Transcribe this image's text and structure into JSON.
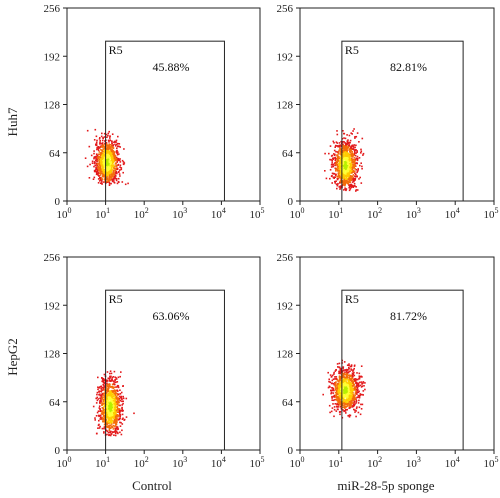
{
  "chart_data": {
    "type": "scatter",
    "row_labels": [
      "Huh7",
      "HepG2"
    ],
    "column_labels": [
      "Control",
      "miR-28-5p sponge"
    ],
    "x_axis": {
      "scale": "log",
      "range": [
        1,
        100000
      ],
      "tick_bases": [
        "10",
        "10",
        "10",
        "10",
        "10",
        "10"
      ],
      "tick_exponents": [
        "0",
        "1",
        "2",
        "3",
        "4",
        "5"
      ]
    },
    "y_axis": {
      "scale": "linear",
      "range": [
        0,
        256
      ],
      "ticks": [
        "0",
        "64",
        "128",
        "192",
        "256"
      ]
    },
    "gate_name": "R5",
    "gate_x_range": [
      10,
      12000
    ],
    "gate_y_range": [
      0,
      212
    ],
    "panels": [
      {
        "row": "Huh7",
        "column": "Control",
        "gate_name": "R5",
        "gate_percent": "45.88%",
        "gate_x_range": [
          10,
          12000
        ],
        "gate_y_range": [
          0,
          212
        ],
        "population": {
          "center_log_x": 1.02,
          "center_y": 52,
          "spread_log_x": 0.16,
          "spread_y": 16,
          "min_y": 22,
          "max_y": 96,
          "count": 950
        }
      },
      {
        "row": "Huh7",
        "column": "miR-28-5p sponge",
        "gate_name": "R5",
        "gate_percent": "82.81%",
        "gate_x_range": [
          12,
          16000
        ],
        "gate_y_range": [
          0,
          212
        ],
        "population": {
          "center_log_x": 1.15,
          "center_y": 48,
          "spread_log_x": 0.16,
          "spread_y": 17,
          "min_y": 14,
          "max_y": 98,
          "count": 950
        }
      },
      {
        "row": "HepG2",
        "column": "Control",
        "gate_name": "R5",
        "gate_percent": "63.06%",
        "gate_x_range": [
          10,
          12000
        ],
        "gate_y_range": [
          0,
          212
        ],
        "population": {
          "center_log_x": 1.1,
          "center_y": 58,
          "spread_log_x": 0.15,
          "spread_y": 20,
          "min_y": 20,
          "max_y": 108,
          "count": 950
        }
      },
      {
        "row": "HepG2",
        "column": "miR-28-5p sponge",
        "gate_name": "R5",
        "gate_percent": "81.72%",
        "gate_x_range": [
          12,
          16000
        ],
        "gate_y_range": [
          0,
          212
        ],
        "population": {
          "center_log_x": 1.15,
          "center_y": 80,
          "spread_log_x": 0.18,
          "spread_y": 15,
          "min_y": 42,
          "max_y": 120,
          "count": 950
        }
      }
    ],
    "density_colors": [
      "#e31a1c",
      "#f46d0a",
      "#ffcc00",
      "#ffff33",
      "#b8f000"
    ]
  }
}
